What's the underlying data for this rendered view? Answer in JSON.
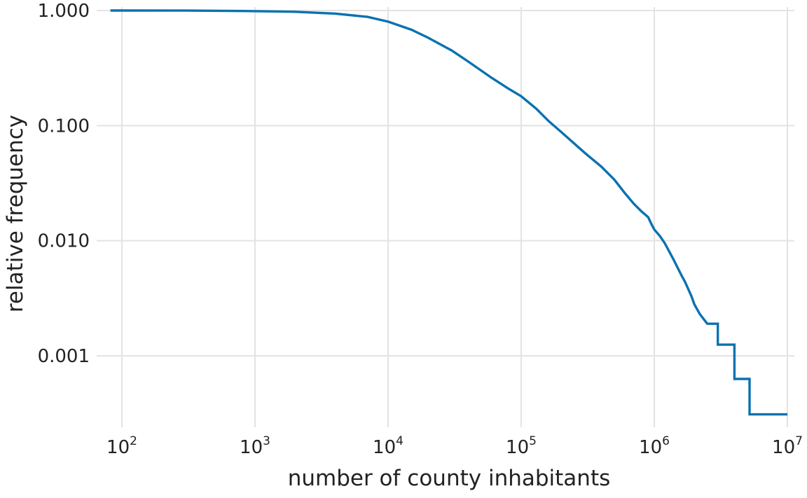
{
  "chart_data": {
    "type": "line",
    "xlabel": "number of county inhabitants",
    "ylabel": "relative frequency",
    "x_scale": "log",
    "y_scale": "log",
    "xlim": [
      82,
      10000000
    ],
    "ylim": [
      0.0003,
      1
    ],
    "grid": true,
    "x_ticks": [
      {
        "value": 100,
        "base": "10",
        "exp": "2"
      },
      {
        "value": 1000,
        "base": "10",
        "exp": "3"
      },
      {
        "value": 10000,
        "base": "10",
        "exp": "4"
      },
      {
        "value": 100000,
        "base": "10",
        "exp": "5"
      },
      {
        "value": 1000000,
        "base": "10",
        "exp": "6"
      },
      {
        "value": 10000000,
        "base": "10",
        "exp": "7"
      }
    ],
    "y_ticks": [
      {
        "value": 1,
        "label": "1.000"
      },
      {
        "value": 0.1,
        "label": "0.100"
      },
      {
        "value": 0.01,
        "label": "0.010"
      },
      {
        "value": 0.001,
        "label": "0.001"
      }
    ],
    "series": [
      {
        "color": "#0a72b0",
        "x": [
          82,
          300,
          800,
          2000,
          4000,
          7000,
          10000,
          15000,
          20000,
          30000,
          40000,
          60000,
          80000,
          100000,
          130000,
          160000,
          200000,
          250000,
          300000,
          400000,
          500000,
          600000,
          700000,
          800000,
          900000,
          950000,
          1000000,
          1100000,
          1200000,
          1300000,
          1400000,
          1500000,
          1600000,
          1700000,
          1800000,
          1900000,
          2000000,
          2200000,
          2500000,
          3000000,
          3000000,
          4000000,
          4000000,
          5200000,
          5200000,
          10000000
        ],
        "y": [
          1,
          0.998,
          0.99,
          0.975,
          0.94,
          0.88,
          0.8,
          0.68,
          0.58,
          0.45,
          0.36,
          0.26,
          0.21,
          0.18,
          0.14,
          0.11,
          0.088,
          0.07,
          0.058,
          0.044,
          0.034,
          0.026,
          0.021,
          0.018,
          0.016,
          0.014,
          0.0125,
          0.011,
          0.0095,
          0.008,
          0.0068,
          0.0058,
          0.005,
          0.0044,
          0.0038,
          0.0033,
          0.0028,
          0.0023,
          0.0019,
          0.0019,
          0.00125,
          0.00125,
          0.00063,
          0.00063,
          0.00031,
          0.00031
        ]
      }
    ]
  }
}
